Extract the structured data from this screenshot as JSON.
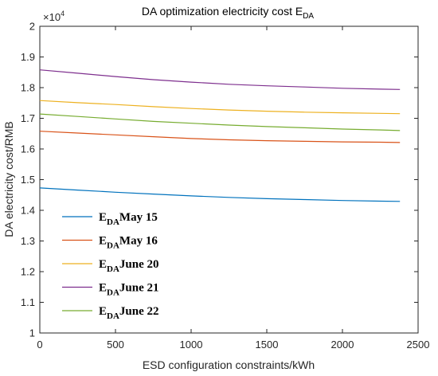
{
  "chart_data": {
    "type": "line",
    "title": "DA optimization electricity cost E",
    "title_subscript": "DA",
    "xlabel": "ESD configuration constraints/kWh",
    "ylabel": "DA electricity cost/RMB",
    "y_exponent_label": "×10",
    "y_exponent": "4",
    "xlim": [
      0,
      2500
    ],
    "ylim": [
      1,
      2
    ],
    "x_ticks": [
      "0",
      "500",
      "1000",
      "1500",
      "2000",
      "2500"
    ],
    "y_ticks": [
      "1",
      "1.1",
      "1.2",
      "1.3",
      "1.4",
      "1.5",
      "1.6",
      "1.7",
      "1.8",
      "1.9",
      "2"
    ],
    "grid": false,
    "legend_position": "bottom-left",
    "x": [
      0,
      250,
      500,
      750,
      1000,
      1250,
      1500,
      1750,
      2000,
      2250,
      2380
    ],
    "series": [
      {
        "legend_prefix": "E",
        "legend_sub": "DA",
        "name": "May 15",
        "color": "#0072BD",
        "values": [
          1.473,
          1.466,
          1.459,
          1.453,
          1.447,
          1.442,
          1.438,
          1.435,
          1.432,
          1.43,
          1.429
        ]
      },
      {
        "legend_prefix": "E",
        "legend_sub": "DA",
        "name": "May 16",
        "color": "#D95319",
        "values": [
          1.658,
          1.652,
          1.646,
          1.64,
          1.634,
          1.63,
          1.627,
          1.625,
          1.623,
          1.622,
          1.621
        ]
      },
      {
        "legend_prefix": "E",
        "legend_sub": "DA",
        "name": "June 20",
        "color": "#EDB120",
        "values": [
          1.758,
          1.751,
          1.745,
          1.738,
          1.732,
          1.727,
          1.723,
          1.72,
          1.718,
          1.716,
          1.715
        ]
      },
      {
        "legend_prefix": "E",
        "legend_sub": "DA",
        "name": "June 21",
        "color": "#7E2F8E",
        "values": [
          1.858,
          1.847,
          1.836,
          1.826,
          1.818,
          1.811,
          1.806,
          1.802,
          1.798,
          1.795,
          1.794
        ]
      },
      {
        "legend_prefix": "E",
        "legend_sub": "DA",
        "name": "June 22",
        "color": "#77AC30",
        "values": [
          1.714,
          1.706,
          1.698,
          1.69,
          1.684,
          1.678,
          1.673,
          1.669,
          1.665,
          1.662,
          1.66
        ]
      }
    ]
  }
}
